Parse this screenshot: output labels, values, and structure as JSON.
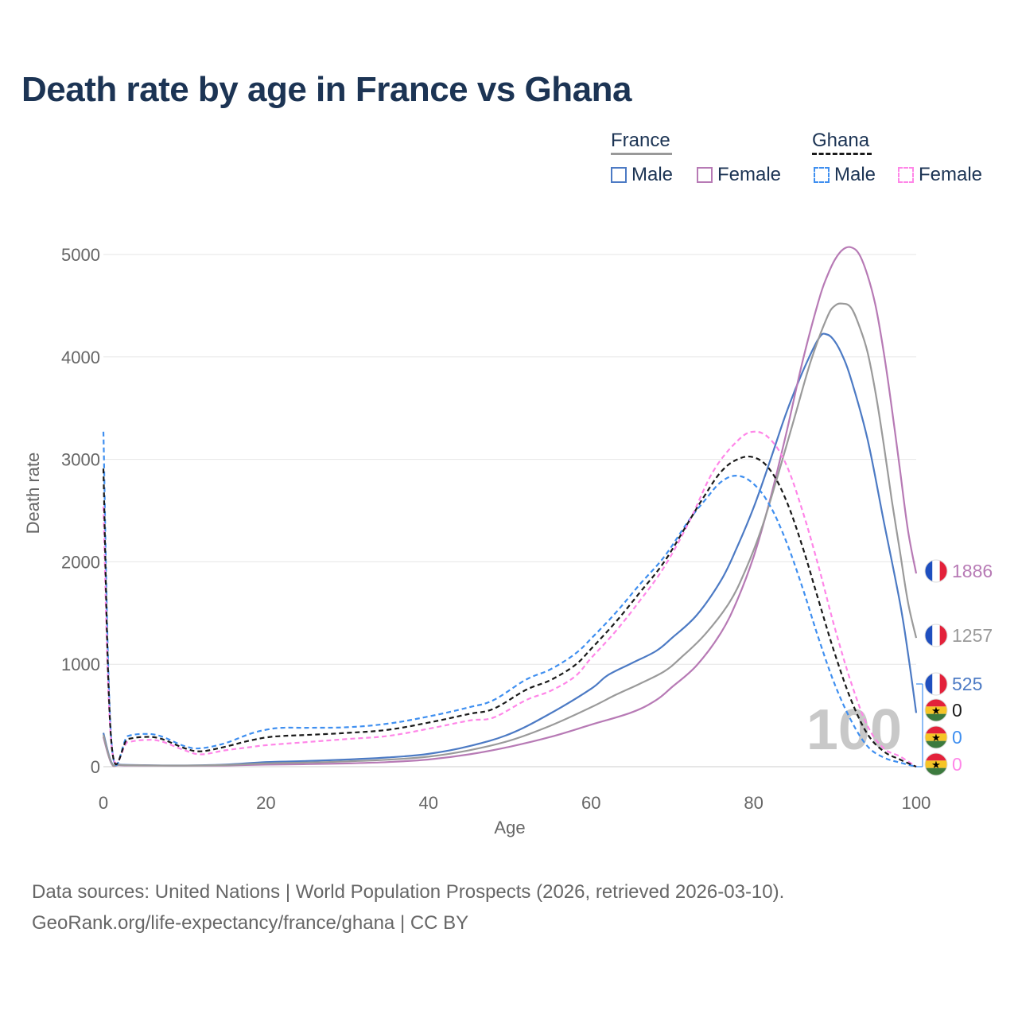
{
  "title": "Death rate by age in France vs Ghana",
  "legend": {
    "groups": [
      {
        "name": "France",
        "underline": "solid",
        "entries": [
          {
            "label": "Male",
            "color": "#4c7ac4",
            "dash": "solid"
          },
          {
            "label": "Female",
            "color": "#b77ab5",
            "dash": "solid"
          }
        ]
      },
      {
        "name": "Ghana",
        "underline": "dashed",
        "entries": [
          {
            "label": "Male",
            "color": "#3f8ff0",
            "dash": "dashed"
          },
          {
            "label": "Female",
            "color": "#ff86e8",
            "dash": "dashed"
          }
        ]
      }
    ]
  },
  "watermark": "100",
  "source": {
    "line1": "Data sources: United Nations | World Population Prospects (2026, retrieved 2026-03-10).",
    "line2": "GeoRank.org/life-expectancy/france/ghana | CC BY"
  },
  "chart_data": {
    "type": "line",
    "xlabel": "Age",
    "ylabel": "Death rate",
    "xlim": [
      0,
      100
    ],
    "ylim": [
      0,
      5000
    ],
    "xticks": [
      0,
      20,
      40,
      60,
      80,
      100
    ],
    "yticks": [
      0,
      1000,
      2000,
      3000,
      4000,
      5000
    ],
    "grid": true,
    "series": [
      {
        "name": "France Male",
        "country": "France",
        "sex": "Male",
        "color": "#4c7ac4",
        "dash": "solid",
        "end_label": "525",
        "flag": "france-flag-icon",
        "points": [
          [
            0,
            330
          ],
          [
            1,
            40
          ],
          [
            2,
            20
          ],
          [
            5,
            15
          ],
          [
            10,
            12
          ],
          [
            15,
            20
          ],
          [
            20,
            45
          ],
          [
            25,
            55
          ],
          [
            30,
            70
          ],
          [
            35,
            90
          ],
          [
            40,
            125
          ],
          [
            45,
            200
          ],
          [
            50,
            320
          ],
          [
            55,
            520
          ],
          [
            60,
            760
          ],
          [
            62,
            890
          ],
          [
            65,
            1010
          ],
          [
            68,
            1130
          ],
          [
            70,
            1260
          ],
          [
            73,
            1480
          ],
          [
            76,
            1820
          ],
          [
            78,
            2150
          ],
          [
            80,
            2530
          ],
          [
            82,
            2980
          ],
          [
            84,
            3450
          ],
          [
            86,
            3850
          ],
          [
            88,
            4180
          ],
          [
            89,
            4220
          ],
          [
            90,
            4150
          ],
          [
            91,
            4000
          ],
          [
            92,
            3780
          ],
          [
            94,
            3200
          ],
          [
            96,
            2400
          ],
          [
            98,
            1600
          ],
          [
            99,
            1100
          ],
          [
            100,
            525
          ]
        ]
      },
      {
        "name": "France Female",
        "country": "France",
        "sex": "Female",
        "color": "#b77ab5",
        "dash": "solid",
        "end_label": "1886",
        "flag": "france-flag-icon",
        "points": [
          [
            0,
            290
          ],
          [
            1,
            30
          ],
          [
            2,
            15
          ],
          [
            5,
            12
          ],
          [
            10,
            10
          ],
          [
            15,
            12
          ],
          [
            20,
            20
          ],
          [
            25,
            25
          ],
          [
            30,
            32
          ],
          [
            35,
            45
          ],
          [
            40,
            70
          ],
          [
            45,
            120
          ],
          [
            50,
            195
          ],
          [
            55,
            290
          ],
          [
            60,
            410
          ],
          [
            65,
            530
          ],
          [
            68,
            650
          ],
          [
            70,
            780
          ],
          [
            73,
            990
          ],
          [
            76,
            1310
          ],
          [
            78,
            1630
          ],
          [
            80,
            2050
          ],
          [
            82,
            2600
          ],
          [
            84,
            3250
          ],
          [
            86,
            3950
          ],
          [
            88,
            4550
          ],
          [
            89,
            4780
          ],
          [
            90,
            4950
          ],
          [
            91,
            5050
          ],
          [
            92,
            5070
          ],
          [
            93,
            5000
          ],
          [
            94,
            4800
          ],
          [
            95,
            4500
          ],
          [
            96,
            4050
          ],
          [
            97,
            3500
          ],
          [
            98,
            2900
          ],
          [
            99,
            2300
          ],
          [
            100,
            1886
          ]
        ]
      },
      {
        "name": "France (total)",
        "country": "France",
        "sex": "Total",
        "color": "#9a9a9a",
        "dash": "solid",
        "end_label": "1257",
        "flag": "france-flag-icon",
        "points": [
          [
            0,
            310
          ],
          [
            1,
            35
          ],
          [
            2,
            18
          ],
          [
            5,
            13
          ],
          [
            10,
            11
          ],
          [
            15,
            16
          ],
          [
            20,
            32
          ],
          [
            25,
            40
          ],
          [
            30,
            52
          ],
          [
            35,
            68
          ],
          [
            40,
            98
          ],
          [
            45,
            160
          ],
          [
            50,
            255
          ],
          [
            55,
            400
          ],
          [
            60,
            580
          ],
          [
            63,
            700
          ],
          [
            66,
            810
          ],
          [
            69,
            930
          ],
          [
            71,
            1060
          ],
          [
            74,
            1290
          ],
          [
            77,
            1600
          ],
          [
            79,
            1920
          ],
          [
            81,
            2330
          ],
          [
            83,
            2850
          ],
          [
            85,
            3400
          ],
          [
            87,
            3950
          ],
          [
            89,
            4380
          ],
          [
            90,
            4500
          ],
          [
            91,
            4520
          ],
          [
            92,
            4480
          ],
          [
            93,
            4300
          ],
          [
            94,
            4050
          ],
          [
            95,
            3650
          ],
          [
            96,
            3150
          ],
          [
            97,
            2600
          ],
          [
            98,
            2100
          ],
          [
            99,
            1600
          ],
          [
            100,
            1257
          ]
        ]
      },
      {
        "name": "Ghana Male",
        "country": "Ghana",
        "sex": "Male",
        "color": "#3f8ff0",
        "dash": "dashed",
        "end_label": "0",
        "flag": "ghana-flag-icon",
        "points": [
          [
            0,
            3270
          ],
          [
            1,
            240
          ],
          [
            3,
            300
          ],
          [
            5,
            320
          ],
          [
            7,
            300
          ],
          [
            10,
            200
          ],
          [
            12,
            180
          ],
          [
            15,
            230
          ],
          [
            18,
            320
          ],
          [
            20,
            360
          ],
          [
            22,
            380
          ],
          [
            25,
            380
          ],
          [
            30,
            385
          ],
          [
            35,
            420
          ],
          [
            40,
            490
          ],
          [
            45,
            580
          ],
          [
            48,
            650
          ],
          [
            52,
            850
          ],
          [
            55,
            950
          ],
          [
            58,
            1100
          ],
          [
            60,
            1250
          ],
          [
            63,
            1500
          ],
          [
            66,
            1780
          ],
          [
            69,
            2050
          ],
          [
            72,
            2400
          ],
          [
            74,
            2600
          ],
          [
            76,
            2780
          ],
          [
            78,
            2840
          ],
          [
            80,
            2760
          ],
          [
            82,
            2550
          ],
          [
            84,
            2200
          ],
          [
            86,
            1750
          ],
          [
            88,
            1250
          ],
          [
            90,
            800
          ],
          [
            92,
            450
          ],
          [
            94,
            200
          ],
          [
            96,
            90
          ],
          [
            98,
            40
          ],
          [
            100,
            0
          ]
        ]
      },
      {
        "name": "Ghana Female",
        "country": "Ghana",
        "sex": "Female",
        "color": "#ff86e8",
        "dash": "dashed",
        "end_label": "0",
        "flag": "ghana-flag-icon",
        "points": [
          [
            0,
            2540
          ],
          [
            1,
            210
          ],
          [
            3,
            240
          ],
          [
            5,
            260
          ],
          [
            7,
            250
          ],
          [
            10,
            160
          ],
          [
            12,
            120
          ],
          [
            15,
            160
          ],
          [
            18,
            190
          ],
          [
            20,
            210
          ],
          [
            25,
            240
          ],
          [
            30,
            270
          ],
          [
            35,
            300
          ],
          [
            40,
            370
          ],
          [
            45,
            450
          ],
          [
            48,
            480
          ],
          [
            52,
            650
          ],
          [
            55,
            740
          ],
          [
            58,
            880
          ],
          [
            60,
            1060
          ],
          [
            63,
            1320
          ],
          [
            66,
            1620
          ],
          [
            69,
            1950
          ],
          [
            72,
            2380
          ],
          [
            75,
            2880
          ],
          [
            78,
            3180
          ],
          [
            80,
            3270
          ],
          [
            82,
            3200
          ],
          [
            84,
            2950
          ],
          [
            86,
            2500
          ],
          [
            88,
            1950
          ],
          [
            90,
            1350
          ],
          [
            92,
            820
          ],
          [
            94,
            400
          ],
          [
            96,
            180
          ],
          [
            98,
            100
          ],
          [
            100,
            0
          ]
        ]
      },
      {
        "name": "Ghana (total)",
        "country": "Ghana",
        "sex": "Total",
        "color": "#1a1a1a",
        "dash": "dashed",
        "end_label": "0",
        "flag": "ghana-flag-icon",
        "points": [
          [
            0,
            2910
          ],
          [
            1,
            225
          ],
          [
            3,
            270
          ],
          [
            5,
            290
          ],
          [
            7,
            275
          ],
          [
            10,
            180
          ],
          [
            12,
            150
          ],
          [
            15,
            195
          ],
          [
            18,
            255
          ],
          [
            20,
            285
          ],
          [
            22,
            300
          ],
          [
            25,
            310
          ],
          [
            30,
            330
          ],
          [
            35,
            360
          ],
          [
            40,
            430
          ],
          [
            45,
            515
          ],
          [
            48,
            565
          ],
          [
            52,
            750
          ],
          [
            55,
            845
          ],
          [
            58,
            990
          ],
          [
            60,
            1150
          ],
          [
            63,
            1410
          ],
          [
            66,
            1700
          ],
          [
            69,
            2000
          ],
          [
            72,
            2390
          ],
          [
            74,
            2650
          ],
          [
            76,
            2880
          ],
          [
            78,
            3000
          ],
          [
            80,
            3020
          ],
          [
            82,
            2900
          ],
          [
            84,
            2600
          ],
          [
            86,
            2150
          ],
          [
            88,
            1620
          ],
          [
            90,
            1100
          ],
          [
            92,
            650
          ],
          [
            94,
            320
          ],
          [
            96,
            150
          ],
          [
            98,
            70
          ],
          [
            100,
            0
          ]
        ]
      }
    ]
  }
}
